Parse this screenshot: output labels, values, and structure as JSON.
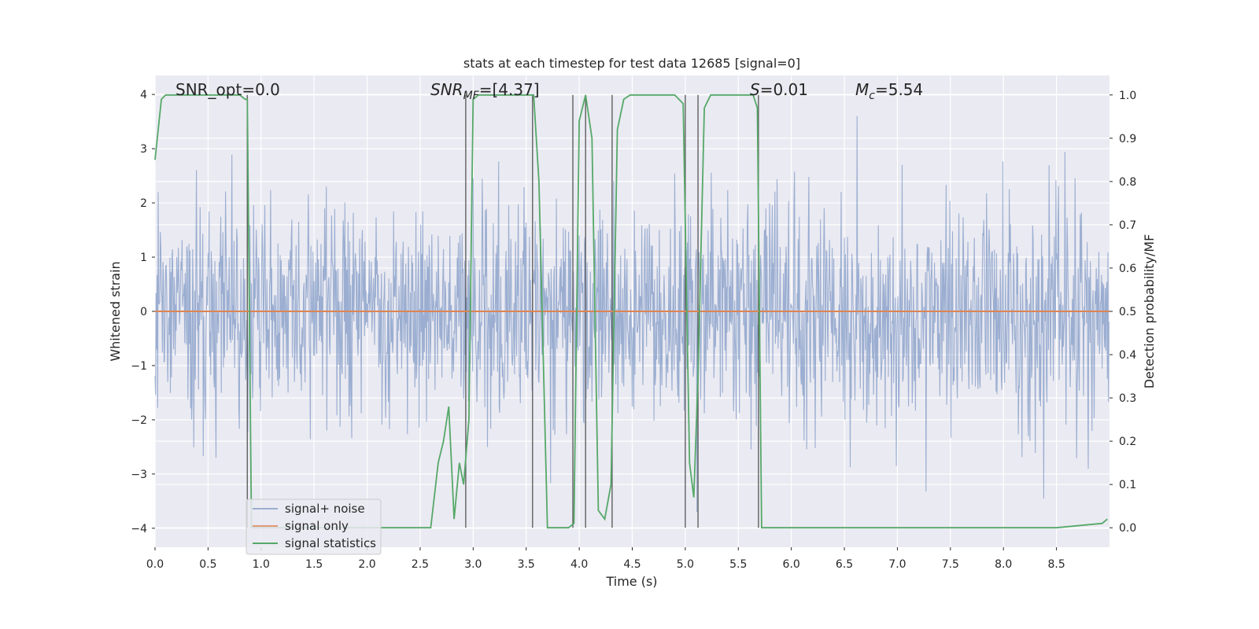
{
  "chart_data": {
    "type": "line",
    "title": "stats at each timestep for test data 12685 [signal=0]",
    "xlabel": "Time (s)",
    "ylabel": "Whitened strain",
    "y2label": "Detection probability/MF",
    "xlim": [
      0.0,
      9.0
    ],
    "ylim": [
      -4.35,
      4.35
    ],
    "y2lim": [
      -0.045,
      1.045
    ],
    "x_ticks": [
      0.0,
      0.5,
      1.0,
      1.5,
      2.0,
      2.5,
      3.0,
      3.5,
      4.0,
      4.5,
      5.0,
      5.5,
      6.0,
      6.5,
      7.0,
      7.5,
      8.0,
      8.5
    ],
    "y_ticks": [
      -4,
      -3,
      -2,
      -1,
      0,
      1,
      2,
      3,
      4
    ],
    "y2_ticks": [
      0.0,
      0.1,
      0.2,
      0.3,
      0.4,
      0.5,
      0.6,
      0.7,
      0.8,
      0.9,
      1.0
    ],
    "grid": true,
    "annotations": {
      "snr_opt": "SNR_opt=0.0",
      "snr_mf_prefix": "SNR",
      "snr_mf_sub": "MF",
      "snr_mf_value": "=[4.37]",
      "s_prefix": "S",
      "s_value": "=0.01",
      "mc_prefix": "M",
      "mc_sub": "c",
      "mc_value": "=5.54"
    },
    "legend": {
      "placement": "lower-left",
      "entries": [
        {
          "label": "signal+ noise",
          "color": "#4c72b0"
        },
        {
          "label": "signal only",
          "color": "#dd8452"
        },
        {
          "label": "signal statistics",
          "color": "#55a868"
        }
      ]
    },
    "series": [
      {
        "name": "signal+ noise",
        "axis": "left",
        "color": "#4c72b0",
        "style": "dense noise, amplitude ~±2.5 with spikes to ±4",
        "seed": 12685,
        "dt": 0.005
      },
      {
        "name": "signal only",
        "axis": "left",
        "color": "#dd8452",
        "x": [
          0.0,
          9.0
        ],
        "y": [
          0.0,
          0.0
        ]
      },
      {
        "name": "signal statistics",
        "axis": "right",
        "color": "#55a868",
        "x": [
          0.0,
          0.06,
          0.1,
          0.15,
          0.6,
          0.8,
          0.85,
          0.87,
          0.91,
          0.95,
          1.0,
          1.5,
          2.0,
          2.5,
          2.6,
          2.67,
          2.72,
          2.77,
          2.82,
          2.87,
          2.91,
          2.96,
          3.0,
          3.05,
          3.5,
          3.57,
          3.62,
          3.7,
          3.8,
          3.9,
          3.95,
          4.0,
          4.06,
          4.12,
          4.18,
          4.24,
          4.3,
          4.36,
          4.42,
          4.48,
          4.56,
          4.7,
          4.9,
          4.98,
          5.04,
          5.08,
          5.12,
          5.18,
          5.24,
          5.3,
          5.5,
          5.64,
          5.68,
          5.72,
          5.76,
          5.82,
          5.9,
          6.0,
          6.1,
          6.5,
          7.0,
          7.5,
          8.0,
          8.5,
          8.93,
          8.98
        ],
        "y": [
          0.85,
          0.99,
          1.0,
          1.0,
          1.0,
          1.0,
          0.99,
          0.99,
          0.0,
          0.0,
          0.0,
          0.0,
          0.0,
          0.0,
          0.0,
          0.15,
          0.2,
          0.28,
          0.02,
          0.15,
          0.1,
          0.25,
          0.99,
          1.0,
          1.0,
          1.0,
          0.8,
          0.0,
          0.0,
          0.0,
          0.01,
          0.94,
          1.0,
          0.9,
          0.04,
          0.02,
          0.1,
          0.92,
          0.99,
          1.0,
          1.0,
          1.0,
          1.0,
          0.98,
          0.15,
          0.07,
          0.35,
          0.97,
          1.0,
          1.0,
          1.0,
          1.0,
          0.97,
          0.0,
          0.0,
          0.0,
          0.0,
          0.0,
          0.0,
          0.0,
          0.0,
          0.0,
          0.0,
          0.0,
          0.01,
          0.02
        ]
      }
    ],
    "vertical_lines": {
      "color": "#555555",
      "x": [
        0.87,
        2.93,
        3.56,
        3.94,
        4.06,
        4.31,
        5.0,
        5.12,
        5.69
      ]
    }
  }
}
